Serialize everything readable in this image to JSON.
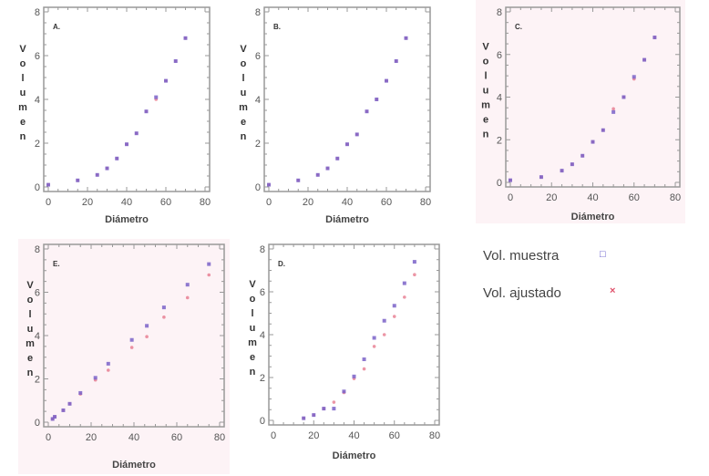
{
  "legend": {
    "muestra": {
      "label": "Vol. muestra",
      "marker": "□",
      "color": "#5a4fc8"
    },
    "ajustado": {
      "label": "Vol. ajustado",
      "marker": "×",
      "color": "#e0506a"
    }
  },
  "chart_data": [
    {
      "type": "scatter",
      "title": "A.",
      "xlabel": "Diámetro",
      "ylabel": "Volumen",
      "xlim": [
        0,
        80
      ],
      "ylim": [
        0,
        8
      ],
      "xticks": [
        "0",
        "20",
        "40",
        "60",
        "80"
      ],
      "yticks": [
        "0",
        "2",
        "4",
        "6",
        "8"
      ],
      "background": "#ffffff",
      "series": [
        {
          "name": "Vol. muestra",
          "x": [
            0,
            15,
            25,
            30,
            35,
            40,
            45,
            50,
            55,
            60,
            65,
            70
          ],
          "y": [
            0.1,
            0.3,
            0.55,
            0.85,
            1.3,
            1.95,
            2.45,
            3.45,
            4.1,
            4.85,
            5.75,
            6.8
          ]
        },
        {
          "name": "Vol. ajustado",
          "x": [
            0,
            15,
            25,
            30,
            35,
            40,
            45,
            50,
            55,
            60,
            65,
            70
          ],
          "y": [
            0.1,
            0.3,
            0.55,
            0.85,
            1.3,
            1.95,
            2.45,
            3.45,
            4.0,
            4.85,
            5.75,
            6.8
          ]
        }
      ]
    },
    {
      "type": "scatter",
      "title": "B.",
      "xlabel": "Diámetro",
      "ylabel": "Volumen",
      "xlim": [
        0,
        80
      ],
      "ylim": [
        0,
        8
      ],
      "xticks": [
        "0",
        "20",
        "40",
        "60",
        "80"
      ],
      "yticks": [
        "0",
        "2",
        "4",
        "6",
        "8"
      ],
      "background": "#ffffff",
      "series": [
        {
          "name": "Vol. muestra",
          "x": [
            0,
            15,
            25,
            30,
            35,
            40,
            45,
            50,
            55,
            60,
            65,
            70
          ],
          "y": [
            0.1,
            0.3,
            0.55,
            0.85,
            1.3,
            1.95,
            2.4,
            3.45,
            4.0,
            4.85,
            5.75,
            6.8
          ]
        },
        {
          "name": "Vol. ajustado",
          "x": [
            0,
            15,
            25,
            30,
            35,
            40,
            45,
            50,
            55,
            60,
            65,
            70
          ],
          "y": [
            0.1,
            0.3,
            0.55,
            0.85,
            1.3,
            1.95,
            2.4,
            3.45,
            4.0,
            4.85,
            5.75,
            6.8
          ]
        }
      ]
    },
    {
      "type": "scatter",
      "title": "C.",
      "xlabel": "Diámetro",
      "ylabel": "Volumen",
      "xlim": [
        0,
        80
      ],
      "ylim": [
        0,
        8
      ],
      "xticks": [
        "0",
        "20",
        "40",
        "60",
        "80"
      ],
      "yticks": [
        "0",
        "2",
        "4",
        "6",
        "8"
      ],
      "background": "#fdf3f6",
      "series": [
        {
          "name": "Vol. muestra",
          "x": [
            0,
            15,
            25,
            30,
            35,
            40,
            45,
            50,
            55,
            60,
            65,
            70
          ],
          "y": [
            0.1,
            0.25,
            0.55,
            0.85,
            1.25,
            1.9,
            2.45,
            3.3,
            4.0,
            4.95,
            5.75,
            6.8
          ]
        },
        {
          "name": "Vol. ajustado",
          "x": [
            0,
            15,
            25,
            30,
            35,
            40,
            45,
            50,
            55,
            60,
            65,
            70
          ],
          "y": [
            0.1,
            0.25,
            0.55,
            0.85,
            1.25,
            1.9,
            2.45,
            3.45,
            4.0,
            4.85,
            5.75,
            6.8
          ]
        }
      ]
    },
    {
      "type": "scatter",
      "title": "E.",
      "xlabel": "Diámetro",
      "ylabel": "Volumen",
      "xlim": [
        0,
        80
      ],
      "ylim": [
        0,
        8
      ],
      "xticks": [
        "0",
        "20",
        "40",
        "60",
        "80"
      ],
      "yticks": [
        "0",
        "2",
        "4",
        "6",
        "8"
      ],
      "background": "#fdf3f6",
      "series": [
        {
          "name": "Vol. muestra",
          "x": [
            2,
            3,
            7,
            10,
            15,
            22,
            28,
            39,
            46,
            54,
            65,
            75
          ],
          "y": [
            0.15,
            0.25,
            0.55,
            0.85,
            1.35,
            2.05,
            2.7,
            3.8,
            4.45,
            5.3,
            6.35,
            7.3
          ]
        },
        {
          "name": "Vol. ajustado",
          "x": [
            2,
            3,
            7,
            10,
            15,
            22,
            28,
            39,
            46,
            54,
            65,
            75
          ],
          "y": [
            0.15,
            0.25,
            0.55,
            0.85,
            1.3,
            1.95,
            2.4,
            3.45,
            3.95,
            4.85,
            5.75,
            6.8
          ]
        }
      ]
    },
    {
      "type": "scatter",
      "title": "D.",
      "xlabel": "Diámetro",
      "ylabel": "Volumen",
      "xlim": [
        0,
        80
      ],
      "ylim": [
        0,
        8
      ],
      "xticks": [
        "0",
        "20",
        "40",
        "60",
        "80"
      ],
      "yticks": [
        "0",
        "2",
        "4",
        "6",
        "8"
      ],
      "background": "#ffffff",
      "series": [
        {
          "name": "Vol. muestra",
          "x": [
            15,
            20,
            25,
            30,
            35,
            40,
            45,
            50,
            55,
            60,
            65,
            70
          ],
          "y": [
            0.1,
            0.25,
            0.55,
            0.55,
            1.35,
            2.05,
            2.85,
            3.85,
            4.65,
            5.35,
            6.4,
            7.4
          ]
        },
        {
          "name": "Vol. ajustado",
          "x": [
            15,
            20,
            25,
            30,
            35,
            40,
            45,
            50,
            55,
            60,
            65,
            70
          ],
          "y": [
            0.1,
            0.25,
            0.55,
            0.85,
            1.3,
            1.95,
            2.4,
            3.45,
            4.0,
            4.85,
            5.75,
            6.8
          ]
        }
      ]
    }
  ]
}
